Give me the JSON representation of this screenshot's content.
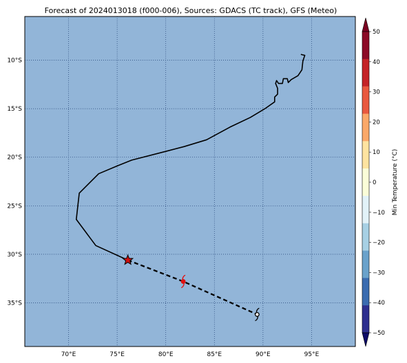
{
  "title": "Forecast of 2024013018 (f000-006), Sources: GDACS (TC track), GFS (Meteo)",
  "map": {
    "ocean_color": "#92b5d8",
    "grid_color": "#1f3f73",
    "lon_range": [
      65.5,
      99.5
    ],
    "lat_range": [
      -39.5,
      -5.5
    ],
    "lon_ticks": [
      70,
      75,
      80,
      85,
      90,
      95
    ],
    "lon_tick_labels": [
      "70°E",
      "75°E",
      "80°E",
      "85°E",
      "90°E",
      "95°E"
    ],
    "lat_ticks": [
      -10,
      -15,
      -20,
      -25,
      -30,
      -35
    ],
    "lat_tick_labels": [
      "10°S",
      "15°S",
      "20°S",
      "25°S",
      "30°S",
      "35°S"
    ],
    "past_track": [
      [
        93.9,
        -9.4
      ],
      [
        94.3,
        -9.5
      ],
      [
        94.1,
        -10.1
      ],
      [
        94.0,
        -11.0
      ],
      [
        93.6,
        -11.6
      ],
      [
        92.9,
        -12.0
      ],
      [
        92.6,
        -12.3
      ],
      [
        92.5,
        -11.9
      ],
      [
        92.1,
        -11.9
      ],
      [
        92.0,
        -12.4
      ],
      [
        91.6,
        -12.4
      ],
      [
        91.4,
        -12.1
      ],
      [
        91.3,
        -12.4
      ],
      [
        91.5,
        -12.9
      ],
      [
        91.5,
        -13.5
      ],
      [
        91.2,
        -13.8
      ],
      [
        91.2,
        -14.3
      ],
      [
        90.2,
        -15.0
      ],
      [
        88.7,
        -15.9
      ],
      [
        86.6,
        -16.9
      ],
      [
        84.2,
        -18.2
      ],
      [
        81.9,
        -18.9
      ],
      [
        80.0,
        -19.4
      ],
      [
        76.5,
        -20.3
      ],
      [
        75.0,
        -20.9
      ],
      [
        73.1,
        -21.7
      ],
      [
        71.1,
        -23.7
      ],
      [
        70.8,
        -26.4
      ],
      [
        72.8,
        -29.1
      ],
      [
        76.1,
        -30.6
      ]
    ],
    "forecast_track": [
      [
        76.1,
        -30.6
      ],
      [
        81.8,
        -32.8
      ],
      [
        89.4,
        -36.2
      ]
    ],
    "current_position": [
      76.1,
      -30.6
    ],
    "forecast_points": [
      {
        "lon": 81.8,
        "lat": -32.8,
        "color": "#e01010",
        "name": "forecast-storm-symbol-red"
      },
      {
        "lon": 89.4,
        "lat": -36.2,
        "color": "#000000",
        "name": "forecast-storm-symbol-black"
      }
    ],
    "marker_color": "#d01010"
  },
  "colorbar": {
    "label": "Min Temperature (°C)",
    "levels": [
      50,
      40,
      30,
      20,
      10,
      0,
      -10,
      -20,
      -30,
      -40,
      -50
    ],
    "tick_labels": [
      "50",
      "40",
      "30",
      "20",
      "10",
      "0",
      "−10",
      "−20",
      "−30",
      "−40",
      "−50"
    ],
    "colors_top_to_bottom": [
      "#8c0a26",
      "#c42327",
      "#e9593f",
      "#fba869",
      "#fee3a0",
      "#fbfdd8",
      "#e2f2f8",
      "#a7d0e4",
      "#6aa2cb",
      "#3b6cb0",
      "#2e2f8f"
    ],
    "over_color": "#7a0020",
    "under_color": "#0d0b68"
  }
}
